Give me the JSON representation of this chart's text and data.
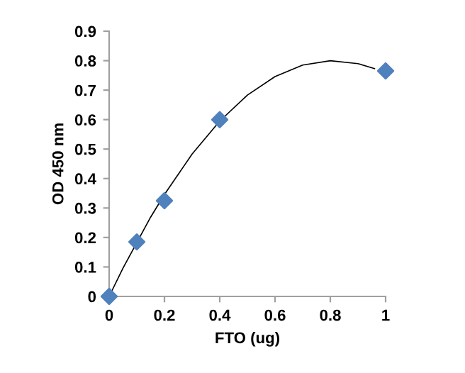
{
  "chart_data": {
    "type": "scatter",
    "xlabel": "FTO (ug)",
    "ylabel": "OD 450 nm",
    "series": [
      {
        "color": "#4f81bd",
        "marker": "diamond",
        "x": [
          0,
          0.1,
          0.2,
          0.4,
          1
        ],
        "values": [
          0,
          0.185,
          0.325,
          0.6,
          0.765
        ]
      },
      {
        "type": "line",
        "color": "#000000",
        "marker": "none",
        "x": [
          0,
          0.05,
          0.15,
          0.2,
          0.3,
          0.4,
          0.5,
          0.6,
          0.7,
          0.8,
          0.9,
          0.96
        ],
        "values": [
          0,
          0.096,
          0.269,
          0.346,
          0.483,
          0.595,
          0.683,
          0.746,
          0.785,
          0.8,
          0.79,
          0.773
        ]
      }
    ],
    "xlim": [
      0,
      1
    ],
    "xticks": [
      0,
      0.2,
      0.4,
      0.6,
      0.8,
      1
    ],
    "ylim": [
      0,
      0.9
    ],
    "yticks": [
      0,
      0.1,
      0.2,
      0.3,
      0.4,
      0.5,
      0.6,
      0.7,
      0.8,
      0.9
    ],
    "grid": false,
    "legend": false
  }
}
